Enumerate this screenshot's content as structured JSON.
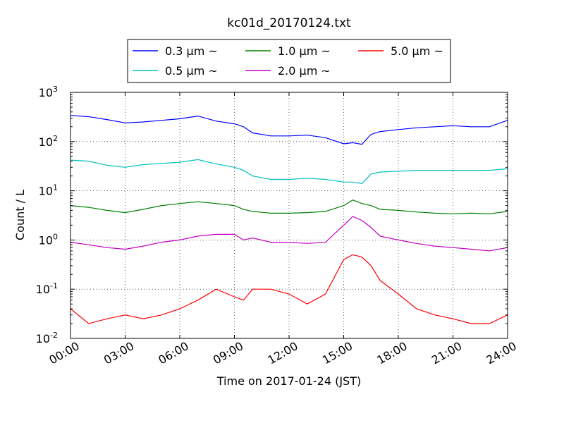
{
  "chart_data": {
    "type": "line",
    "title": "kc01d_20170124.txt",
    "xlabel": "Time on 2017-01-24 (JST)",
    "ylabel": "Count / L",
    "yscale": "log",
    "xlim": [
      0,
      24
    ],
    "ylim": [
      0.01,
      1000
    ],
    "grid": true,
    "legend_position": "top-center",
    "x_tick_labels": [
      "00:00",
      "03:00",
      "06:00",
      "09:00",
      "12:00",
      "15:00",
      "18:00",
      "21:00",
      "24:00"
    ],
    "y_tick_labels": [
      {
        "base": "10",
        "exp": "-2"
      },
      {
        "base": "10",
        "exp": "-1"
      },
      {
        "base": "10",
        "exp": "0"
      },
      {
        "base": "10",
        "exp": "1"
      },
      {
        "base": "10",
        "exp": "2"
      },
      {
        "base": "10",
        "exp": "3"
      }
    ],
    "x": [
      0,
      1,
      2,
      3,
      4,
      5,
      6,
      7,
      8,
      9,
      9.5,
      10,
      11,
      12,
      13,
      14,
      15,
      15.5,
      16,
      16.5,
      17,
      18,
      19,
      20,
      21,
      22,
      23,
      24
    ],
    "series": [
      {
        "name": "0.3 μm ~",
        "color": "#0000ff",
        "values": [
          340,
          320,
          280,
          240,
          250,
          270,
          290,
          330,
          260,
          230,
          200,
          150,
          130,
          130,
          135,
          120,
          90,
          95,
          88,
          140,
          160,
          175,
          190,
          200,
          210,
          200,
          200,
          270
        ]
      },
      {
        "name": "0.5 μm ~",
        "color": "#00bfbf",
        "values": [
          42,
          40,
          33,
          30,
          34,
          36,
          38,
          43,
          35,
          30,
          26,
          20,
          17,
          17,
          18,
          17,
          15,
          15,
          14,
          22,
          24,
          25,
          26,
          26,
          26,
          26,
          26,
          28
        ]
      },
      {
        "name": "1.0 μm ~",
        "color": "#008000",
        "values": [
          5.0,
          4.6,
          4.0,
          3.6,
          4.2,
          5.0,
          5.5,
          6.0,
          5.5,
          5.0,
          4.2,
          3.8,
          3.5,
          3.5,
          3.6,
          3.8,
          5.0,
          6.5,
          5.5,
          5.0,
          4.2,
          4.0,
          3.7,
          3.5,
          3.4,
          3.5,
          3.4,
          3.8
        ]
      },
      {
        "name": "2.0 μm ~",
        "color": "#bf00bf",
        "values": [
          0.9,
          0.8,
          0.7,
          0.65,
          0.75,
          0.9,
          1.0,
          1.2,
          1.3,
          1.3,
          1.0,
          1.1,
          0.9,
          0.9,
          0.85,
          0.9,
          2.0,
          3.0,
          2.5,
          1.8,
          1.2,
          1.0,
          0.85,
          0.75,
          0.7,
          0.65,
          0.6,
          0.7
        ]
      },
      {
        "name": "5.0 μm ~",
        "color": "#ff0000",
        "values": [
          0.04,
          0.02,
          0.025,
          0.03,
          0.025,
          0.03,
          0.04,
          0.06,
          0.1,
          0.07,
          0.06,
          0.1,
          0.1,
          0.08,
          0.05,
          0.08,
          0.4,
          0.5,
          0.45,
          0.3,
          0.15,
          0.08,
          0.04,
          0.03,
          0.025,
          0.02,
          0.02,
          0.03
        ]
      }
    ]
  }
}
